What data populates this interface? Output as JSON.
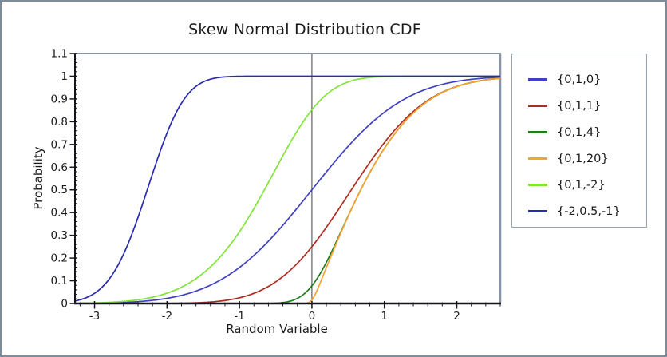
{
  "window": {
    "background": "#ffffff",
    "border_color": "#7d8c9c"
  },
  "chart_data": {
    "type": "line",
    "title": "Skew Normal Distribution CDF",
    "xlabel": "Random Variable",
    "ylabel": "Probability",
    "curve_model": "skew normal CDF; each series parameterized by {location, scale, shape}",
    "xlim": [
      -3.27,
      2.6
    ],
    "ylim": [
      0,
      1.1
    ],
    "x_major_ticks": [
      -3,
      -2,
      -1,
      0,
      1,
      2
    ],
    "x_tick_labels": [
      "-3",
      "-2",
      "-1",
      "0",
      "1",
      "2"
    ],
    "x_minor_step": 0.2,
    "y_major_ticks": [
      0,
      0.1,
      0.2,
      0.3,
      0.4,
      0.5,
      0.6,
      0.7,
      0.8,
      0.9,
      1,
      1.1
    ],
    "y_tick_labels": [
      "0",
      "0.1",
      "0.2",
      "0.3",
      "0.4",
      "0.5",
      "0.6",
      "0.7",
      "0.8",
      "0.9",
      "1",
      "1.1"
    ],
    "y_minor_step": 0.02,
    "grid": "off",
    "zero_axis_line_x": 0,
    "legend_position": "outside right",
    "samples_x": [
      -3,
      -2,
      -1,
      0,
      1,
      2
    ],
    "series": [
      {
        "label": "{0,1,0}",
        "location": 0,
        "scale": 1,
        "shape": 0,
        "color": "#4040c4",
        "samples_y": [
          0.001,
          0.023,
          0.159,
          0.5,
          0.841,
          0.977
        ]
      },
      {
        "label": "{0,1,1}",
        "location": 0,
        "scale": 1,
        "shape": 1,
        "color": "#ad2b20",
        "samples_y": [
          0,
          0.001,
          0.025,
          0.25,
          0.708,
          0.955
        ]
      },
      {
        "label": "{0,1,4}",
        "location": 0,
        "scale": 1,
        "shape": 4,
        "color": "#1e7e1e",
        "samples_y": [
          0,
          0,
          0.0003,
          0.078,
          0.682,
          0.954
        ]
      },
      {
        "label": "{0,1,20}",
        "location": 0,
        "scale": 1,
        "shape": 20,
        "color": "#f6a332",
        "samples_y": [
          0,
          0,
          0,
          0.016,
          0.683,
          0.954
        ]
      },
      {
        "label": "{0,1,-2}",
        "location": 0,
        "scale": 1,
        "shape": -2,
        "color": "#82e437",
        "samples_y": [
          0.003,
          0.045,
          0.315,
          0.852,
          0.998,
          1
        ]
      },
      {
        "label": "{-2,0.5,-1}",
        "location": -2,
        "scale": 0.5,
        "shape": -1,
        "color": "#2a2ab2",
        "samples_y": [
          0.045,
          0.75,
          0.9995,
          1,
          1,
          1
        ]
      }
    ],
    "colors": {
      "axis": "#14141c",
      "frame": "#8796a6",
      "zero_line": "#3f3f3f",
      "text": "#1a1a1a"
    }
  }
}
